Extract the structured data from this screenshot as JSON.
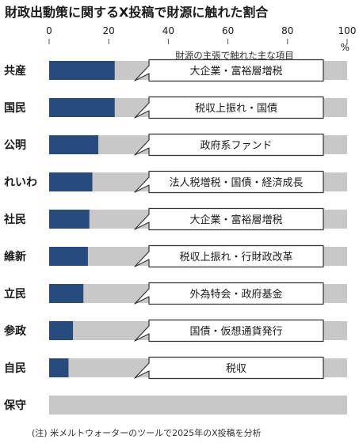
{
  "chart_data": {
    "type": "bar",
    "orientation": "horizontal",
    "title": "財政出動策に関するX投稿で財源に触れた割合",
    "unit": "%",
    "xlim": [
      0,
      100
    ],
    "x_ticks": [
      "0",
      "20",
      "40",
      "60",
      "80",
      "100"
    ],
    "subtitle": "財源の主張で触れた主な項目",
    "categories": [
      "共産",
      "国民",
      "公明",
      "れいわ",
      "社民",
      "維新",
      "立民",
      "参政",
      "自民",
      "保守"
    ],
    "values": [
      22,
      22,
      16.5,
      14.5,
      13.5,
      13,
      11.5,
      8,
      6.5,
      0
    ],
    "items": [
      "大企業・富裕層増税",
      "税収上振れ・国債",
      "政府系ファンド",
      "法人税増税・国債・経済成長",
      "大企業・富裕層増税",
      "税収上振れ・行財政改革",
      "外為特会・政府基金",
      "国債・仮想通貨発行",
      "税収",
      ""
    ],
    "note": "(注) 米メルトウォーターのツールで2025年のX投稿を分析",
    "colors": {
      "bar": "#284b7e",
      "track": "#c8c8c8",
      "callout_border": "#333333"
    }
  }
}
